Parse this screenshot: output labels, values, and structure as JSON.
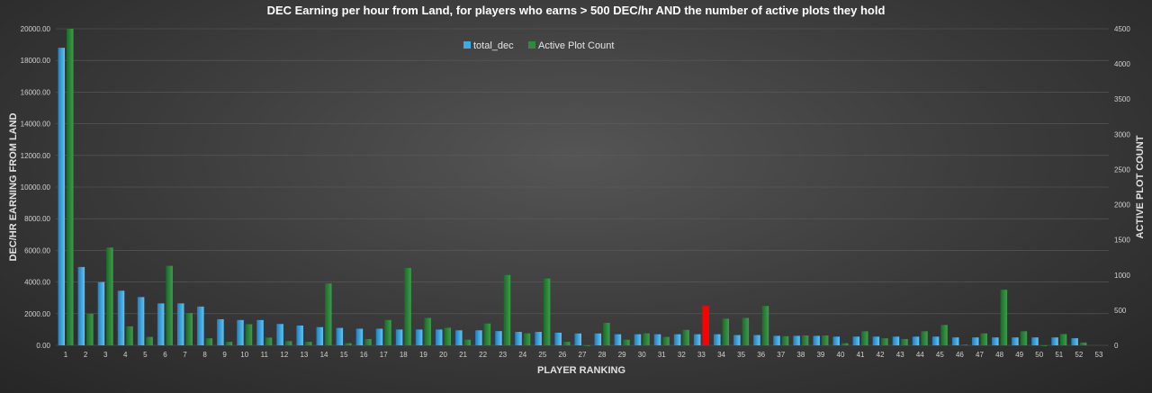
{
  "chart_data": {
    "type": "bar",
    "title": "DEC Earning per hour from Land, for players who earns > 500 DEC/hr AND the number of active plots they hold",
    "xlabel": "PLAYER RANKING",
    "ylabel_left": "DEC/HR EARNING FROM LAND",
    "ylabel_right": "ACTIVE PLOT COUNT",
    "ylim_left": [
      0,
      20000
    ],
    "ylim_right": [
      0,
      4500
    ],
    "left_ticks": [
      "0.00",
      "2000.00",
      "4000.00",
      "6000.00",
      "8000.00",
      "10000.00",
      "12000.00",
      "14000.00",
      "16000.00",
      "18000.00",
      "20000.00"
    ],
    "right_ticks": [
      "0",
      "500",
      "1000",
      "1500",
      "2000",
      "2500",
      "3000",
      "3500",
      "4000",
      "4500"
    ],
    "categories": [
      "1",
      "2",
      "3",
      "4",
      "5",
      "6",
      "7",
      "8",
      "9",
      "10",
      "11",
      "12",
      "13",
      "14",
      "15",
      "16",
      "17",
      "18",
      "19",
      "20",
      "21",
      "22",
      "23",
      "24",
      "25",
      "26",
      "27",
      "28",
      "29",
      "30",
      "31",
      "32",
      "33",
      "34",
      "35",
      "36",
      "37",
      "38",
      "39",
      "40",
      "41",
      "42",
      "43",
      "44",
      "45",
      "46",
      "47",
      "48",
      "49",
      "50",
      "51",
      "52",
      "53"
    ],
    "series": [
      {
        "name": "total_dec",
        "axis": "left",
        "color": "#3fa9e0",
        "values": [
          18800,
          4950,
          4000,
          3450,
          3050,
          2650,
          2650,
          2450,
          1650,
          1600,
          1600,
          1350,
          1250,
          1150,
          1100,
          1050,
          1050,
          1000,
          1000,
          1000,
          950,
          950,
          900,
          850,
          850,
          800,
          750,
          750,
          700,
          700,
          700,
          700,
          700,
          700,
          650,
          650,
          600,
          600,
          600,
          550,
          550,
          550,
          550,
          550,
          550,
          500,
          500,
          500,
          500,
          500,
          500,
          450,
          null
        ]
      },
      {
        "name": "Active Plot Count",
        "axis": "right",
        "color": "#2e8b3a",
        "highlight": {
          "index": 32,
          "color": "#ff0000"
        },
        "values": [
          4500,
          450,
          1390,
          270,
          120,
          1130,
          460,
          100,
          50,
          300,
          110,
          60,
          50,
          880,
          30,
          90,
          360,
          1100,
          390,
          250,
          80,
          310,
          1000,
          170,
          950,
          50,
          0,
          320,
          80,
          170,
          120,
          220,
          560,
          380,
          390,
          560,
          130,
          140,
          140,
          30,
          200,
          100,
          90,
          200,
          290,
          10,
          170,
          790,
          200,
          0,
          160,
          40,
          null
        ]
      }
    ],
    "legend": {
      "position": "top-center"
    },
    "grid": true
  }
}
